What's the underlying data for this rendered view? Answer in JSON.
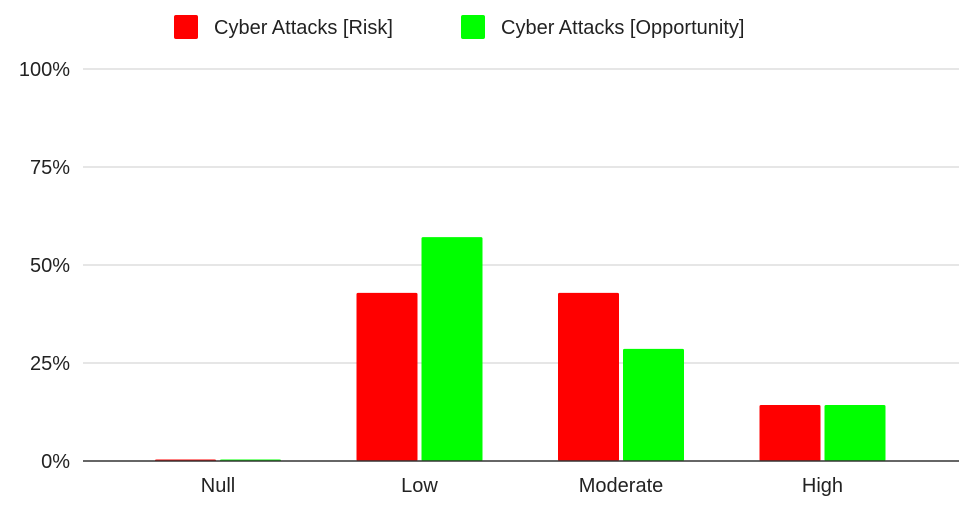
{
  "chart_data": {
    "type": "bar",
    "categories": [
      "Null",
      "Low",
      "Moderate",
      "High"
    ],
    "series": [
      {
        "name": "Cyber Attacks [Risk]",
        "color": "#ff0000",
        "values": [
          0,
          42.9,
          42.9,
          14.3
        ]
      },
      {
        "name": "Cyber Attacks [Opportunity]",
        "color": "#00ff00",
        "values": [
          0,
          57.1,
          28.6,
          14.3
        ]
      }
    ],
    "y_ticks": [
      "0%",
      "25%",
      "50%",
      "75%",
      "100%"
    ],
    "ylim": [
      0,
      100
    ],
    "grid": true,
    "legend_position": "top-center",
    "title": "",
    "xlabel": "",
    "ylabel": ""
  }
}
